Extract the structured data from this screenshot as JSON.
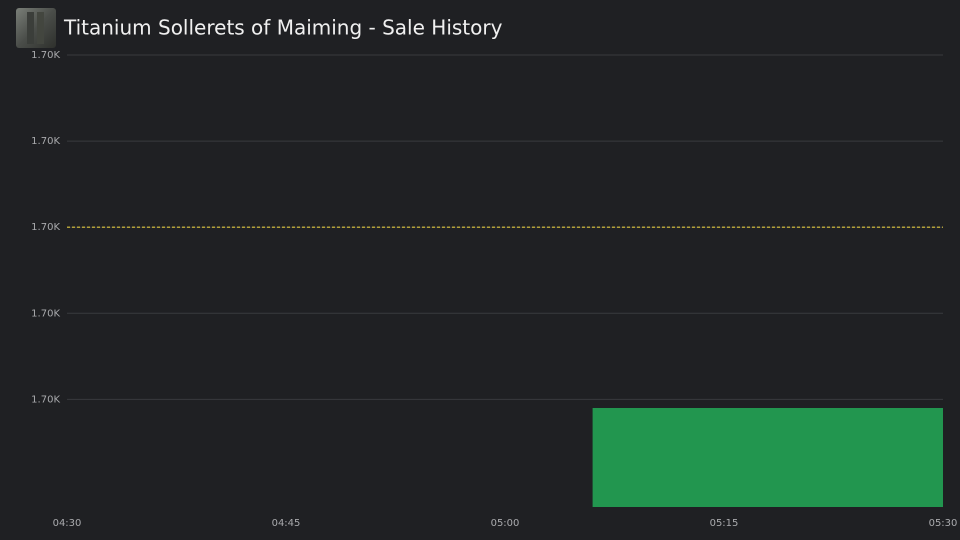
{
  "chart_data": {
    "type": "bar",
    "title": "Titanium Sollerets of Maiming - Sale History",
    "series": [
      {
        "color": "#22964f",
        "x_start": [
          306
        ],
        "x_end": [
          330
        ],
        "values": [
          1699.58
        ]
      }
    ],
    "xlim": [
      270,
      330
    ],
    "xticks": [
      {
        "value": 270,
        "label": "04:30"
      },
      {
        "value": 285,
        "label": "04:45"
      },
      {
        "value": 300,
        "label": "05:00"
      },
      {
        "value": 315,
        "label": "05:15"
      },
      {
        "value": 330,
        "label": "05:30"
      }
    ],
    "ylim": [
      1699.35,
      1700.4
    ],
    "yticks": [
      {
        "value": 1699.6,
        "label": "1.70K"
      },
      {
        "value": 1699.8,
        "label": "1.70K"
      },
      {
        "value": 1700,
        "label": "1.70K"
      },
      {
        "value": 1700.2,
        "label": "1.70K"
      },
      {
        "value": 1700.4,
        "label": "1.70K"
      }
    ],
    "reference_line": {
      "value": 1700,
      "color": "#e0c53a"
    },
    "grid": true
  }
}
